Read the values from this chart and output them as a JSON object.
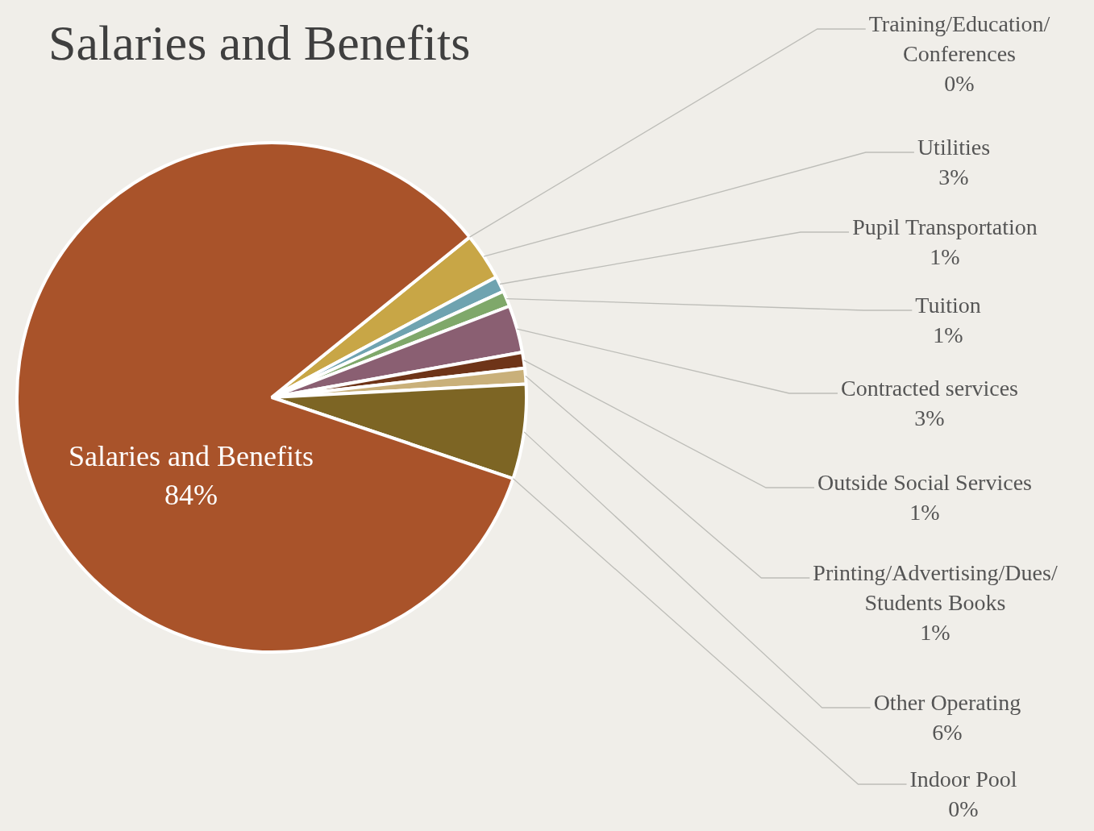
{
  "chart_data": {
    "type": "pie",
    "title": "Salaries and Benefits",
    "categories": [
      "Training/Education/Conferences",
      "Utilities",
      "Pupil Transportation",
      "Tuition",
      "Contracted services",
      "Outside Social Services",
      "Printing/Advertising/Dues/Students Books",
      "Other Operating",
      "Indoor Pool",
      "Salaries and Benefits"
    ],
    "values": [
      0,
      3,
      1,
      1,
      3,
      1,
      1,
      6,
      0,
      84
    ],
    "value_labels": [
      "0%",
      "3%",
      "1%",
      "1%",
      "3%",
      "1%",
      "1%",
      "6%",
      "0%",
      "84%"
    ],
    "colors": [
      "#d9c9a0",
      "#c8a646",
      "#6fa3b0",
      "#7fa86a",
      "#8a5f72",
      "#6e3418",
      "#c9b07a",
      "#7d6524",
      "#9c8a5a",
      "#a9532a"
    ],
    "legend": false
  }
}
